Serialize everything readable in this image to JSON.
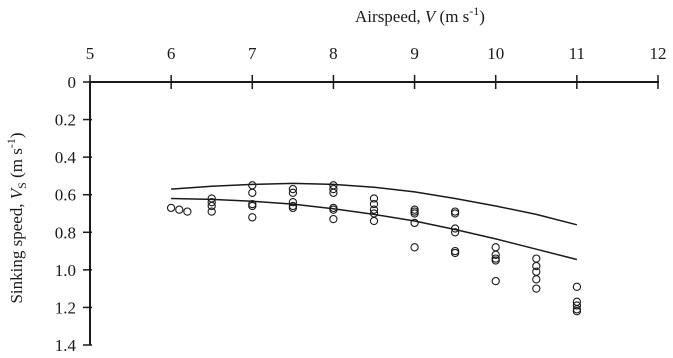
{
  "chart_data": {
    "type": "scatter",
    "title": "",
    "xlabel": {
      "prefix": "Airspeed, ",
      "var": "V",
      "units": " (m s",
      "exp": "-1",
      "close": ")"
    },
    "ylabel": {
      "prefix": "Sinking speed, ",
      "var": "V",
      "sub": "S",
      "units": " (m s",
      "exp": "-1",
      "close": ")"
    },
    "x_axis_position": "top",
    "y_inverted": true,
    "xlim": [
      5,
      12
    ],
    "ylim": [
      0,
      1.4
    ],
    "x_ticks": [
      5,
      6,
      7,
      8,
      9,
      10,
      11,
      12
    ],
    "y_ticks": [
      0,
      0.2,
      0.4,
      0.6,
      0.8,
      1.0,
      1.2,
      1.4
    ],
    "x_tick_labels": [
      "5",
      "6",
      "7",
      "8",
      "9",
      "10",
      "11",
      "12"
    ],
    "y_tick_labels": [
      "0",
      "0.2",
      "0.4",
      "0.6",
      "0.8",
      "1.0",
      "1.2",
      "1.4"
    ],
    "grid": false,
    "points": [
      {
        "x": 6.0,
        "y": 0.67
      },
      {
        "x": 6.1,
        "y": 0.68
      },
      {
        "x": 6.2,
        "y": 0.69
      },
      {
        "x": 6.5,
        "y": 0.62
      },
      {
        "x": 6.5,
        "y": 0.64
      },
      {
        "x": 6.5,
        "y": 0.66
      },
      {
        "x": 6.5,
        "y": 0.69
      },
      {
        "x": 7.0,
        "y": 0.55
      },
      {
        "x": 7.0,
        "y": 0.59
      },
      {
        "x": 7.0,
        "y": 0.65
      },
      {
        "x": 7.0,
        "y": 0.66
      },
      {
        "x": 7.0,
        "y": 0.72
      },
      {
        "x": 7.5,
        "y": 0.57
      },
      {
        "x": 7.5,
        "y": 0.59
      },
      {
        "x": 7.5,
        "y": 0.64
      },
      {
        "x": 7.5,
        "y": 0.66
      },
      {
        "x": 7.5,
        "y": 0.67
      },
      {
        "x": 8.0,
        "y": 0.55
      },
      {
        "x": 8.0,
        "y": 0.57
      },
      {
        "x": 8.0,
        "y": 0.59
      },
      {
        "x": 8.0,
        "y": 0.67
      },
      {
        "x": 8.0,
        "y": 0.68
      },
      {
        "x": 8.0,
        "y": 0.73
      },
      {
        "x": 8.5,
        "y": 0.62
      },
      {
        "x": 8.5,
        "y": 0.65
      },
      {
        "x": 8.5,
        "y": 0.68
      },
      {
        "x": 8.5,
        "y": 0.7
      },
      {
        "x": 8.5,
        "y": 0.74
      },
      {
        "x": 9.0,
        "y": 0.68
      },
      {
        "x": 9.0,
        "y": 0.69
      },
      {
        "x": 9.0,
        "y": 0.7
      },
      {
        "x": 9.0,
        "y": 0.75
      },
      {
        "x": 9.0,
        "y": 0.88
      },
      {
        "x": 9.5,
        "y": 0.69
      },
      {
        "x": 9.5,
        "y": 0.7
      },
      {
        "x": 9.5,
        "y": 0.78
      },
      {
        "x": 9.5,
        "y": 0.8
      },
      {
        "x": 9.5,
        "y": 0.9
      },
      {
        "x": 9.5,
        "y": 0.91
      },
      {
        "x": 10.0,
        "y": 0.88
      },
      {
        "x": 10.0,
        "y": 0.92
      },
      {
        "x": 10.0,
        "y": 0.94
      },
      {
        "x": 10.0,
        "y": 0.95
      },
      {
        "x": 10.0,
        "y": 1.06
      },
      {
        "x": 10.5,
        "y": 0.94
      },
      {
        "x": 10.5,
        "y": 0.98
      },
      {
        "x": 10.5,
        "y": 1.01
      },
      {
        "x": 10.5,
        "y": 1.05
      },
      {
        "x": 10.5,
        "y": 1.1
      },
      {
        "x": 11.0,
        "y": 1.09
      },
      {
        "x": 11.0,
        "y": 1.17
      },
      {
        "x": 11.0,
        "y": 1.19
      },
      {
        "x": 11.0,
        "y": 1.21
      },
      {
        "x": 11.0,
        "y": 1.22
      }
    ],
    "curves": [
      {
        "x": [
          6.0,
          6.5,
          7.0,
          7.5,
          8.0,
          8.5,
          9.0,
          9.5,
          10.0,
          10.5,
          11.0
        ],
        "y": [
          0.57,
          0.555,
          0.545,
          0.54,
          0.545,
          0.56,
          0.585,
          0.62,
          0.66,
          0.705,
          0.76
        ]
      },
      {
        "x": [
          6.0,
          6.5,
          7.0,
          7.5,
          8.0,
          8.5,
          9.0,
          9.5,
          10.0,
          10.5,
          11.0
        ],
        "y": [
          0.62,
          0.625,
          0.635,
          0.65,
          0.675,
          0.705,
          0.74,
          0.785,
          0.835,
          0.89,
          0.945
        ]
      }
    ]
  }
}
